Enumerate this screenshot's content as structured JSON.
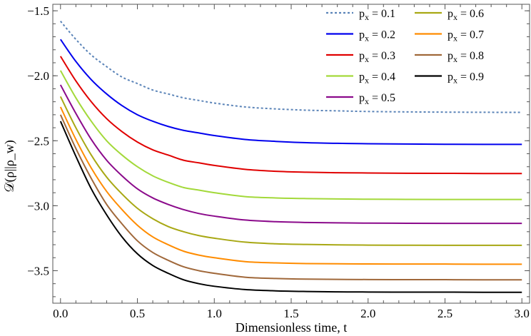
{
  "chart_data": {
    "type": "line",
    "xlabel": "Dimensionless time, t",
    "ylabel": "𝒟(ρ||ρ_w)",
    "xlim": [
      -0.05,
      3.05
    ],
    "ylim": [
      -3.75,
      -1.45
    ],
    "x_ticks": [
      0.0,
      0.5,
      1.0,
      1.5,
      2.0,
      2.5,
      3.0
    ],
    "x_tick_labels": [
      "0.0",
      "0.5",
      "1.0",
      "1.5",
      "2.0",
      "2.5",
      "3.0"
    ],
    "y_ticks": [
      -3.5,
      -3.0,
      -2.5,
      -2.0,
      -1.5
    ],
    "y_tick_labels": [
      "−3.5",
      "−3.0",
      "−2.5",
      "−2.0",
      "−1.5"
    ],
    "legend_position": "top-right",
    "x": [
      0.0,
      0.1,
      0.2,
      0.3,
      0.4,
      0.5,
      0.6,
      0.7,
      0.8,
      0.9,
      1.0,
      1.2,
      1.4,
      1.6,
      1.8,
      2.0,
      2.25,
      2.5,
      2.75,
      3.0
    ],
    "series": [
      {
        "name": "p",
        "sub": "x",
        "value_label": " = 0.1",
        "color": "#5b84b8",
        "dashed": true,
        "values": [
          -1.58,
          -1.72,
          -1.84,
          -1.93,
          -2.01,
          -2.06,
          -2.11,
          -2.14,
          -2.17,
          -2.19,
          -2.21,
          -2.24,
          -2.255,
          -2.265,
          -2.27,
          -2.275,
          -2.278,
          -2.28,
          -2.281,
          -2.282
        ]
      },
      {
        "name": "p",
        "sub": "x",
        "value_label": " = 0.2",
        "color": "#0000ee",
        "dashed": false,
        "values": [
          -1.72,
          -1.89,
          -2.03,
          -2.14,
          -2.23,
          -2.3,
          -2.35,
          -2.39,
          -2.42,
          -2.44,
          -2.46,
          -2.49,
          -2.505,
          -2.515,
          -2.52,
          -2.523,
          -2.525,
          -2.527,
          -2.528,
          -2.528
        ]
      },
      {
        "name": "p",
        "sub": "x",
        "value_label": " = 0.3",
        "color": "#e00000",
        "dashed": false,
        "values": [
          -1.85,
          -2.04,
          -2.2,
          -2.33,
          -2.43,
          -2.51,
          -2.57,
          -2.61,
          -2.65,
          -2.67,
          -2.69,
          -2.72,
          -2.735,
          -2.742,
          -2.746,
          -2.748,
          -2.75,
          -2.751,
          -2.752,
          -2.752
        ]
      },
      {
        "name": "p",
        "sub": "x",
        "value_label": " = 0.4",
        "color": "#a3d93a",
        "dashed": false,
        "values": [
          -1.96,
          -2.17,
          -2.35,
          -2.5,
          -2.61,
          -2.7,
          -2.77,
          -2.82,
          -2.86,
          -2.88,
          -2.9,
          -2.93,
          -2.94,
          -2.945,
          -2.948,
          -2.95,
          -2.951,
          -2.952,
          -2.952,
          -2.952
        ]
      },
      {
        "name": "p",
        "sub": "x",
        "value_label": " = 0.5",
        "color": "#8b0a8b",
        "dashed": false,
        "values": [
          -2.07,
          -2.29,
          -2.49,
          -2.65,
          -2.77,
          -2.87,
          -2.94,
          -2.99,
          -3.03,
          -3.06,
          -3.08,
          -3.11,
          -3.123,
          -3.129,
          -3.132,
          -3.134,
          -3.135,
          -3.136,
          -3.136,
          -3.136
        ]
      },
      {
        "name": "p",
        "sub": "x",
        "value_label": " = 0.6",
        "color": "#a8a814",
        "dashed": false,
        "values": [
          -2.16,
          -2.4,
          -2.61,
          -2.78,
          -2.91,
          -3.02,
          -3.1,
          -3.16,
          -3.2,
          -3.23,
          -3.25,
          -3.28,
          -3.293,
          -3.298,
          -3.301,
          -3.303,
          -3.304,
          -3.305,
          -3.305,
          -3.305
        ]
      },
      {
        "name": "p",
        "sub": "x",
        "value_label": " = 0.7",
        "color": "#ff8c00",
        "dashed": false,
        "values": [
          -2.24,
          -2.49,
          -2.71,
          -2.89,
          -3.03,
          -3.15,
          -3.24,
          -3.3,
          -3.35,
          -3.38,
          -3.4,
          -3.43,
          -3.44,
          -3.445,
          -3.447,
          -3.448,
          -3.449,
          -3.449,
          -3.45,
          -3.45
        ]
      },
      {
        "name": "p",
        "sub": "x",
        "value_label": " = 0.8",
        "color": "#a0683a",
        "dashed": false,
        "values": [
          -2.3,
          -2.56,
          -2.79,
          -2.99,
          -3.14,
          -3.27,
          -3.36,
          -3.42,
          -3.47,
          -3.5,
          -3.52,
          -3.55,
          -3.56,
          -3.565,
          -3.567,
          -3.568,
          -3.569,
          -3.569,
          -3.57,
          -3.57
        ]
      },
      {
        "name": "p",
        "sub": "x",
        "value_label": " = 0.9",
        "color": "#000000",
        "dashed": false,
        "values": [
          -2.35,
          -2.62,
          -2.87,
          -3.07,
          -3.24,
          -3.37,
          -3.46,
          -3.52,
          -3.57,
          -3.6,
          -3.62,
          -3.645,
          -3.655,
          -3.66,
          -3.663,
          -3.664,
          -3.665,
          -3.665,
          -3.666,
          -3.666
        ]
      }
    ]
  }
}
